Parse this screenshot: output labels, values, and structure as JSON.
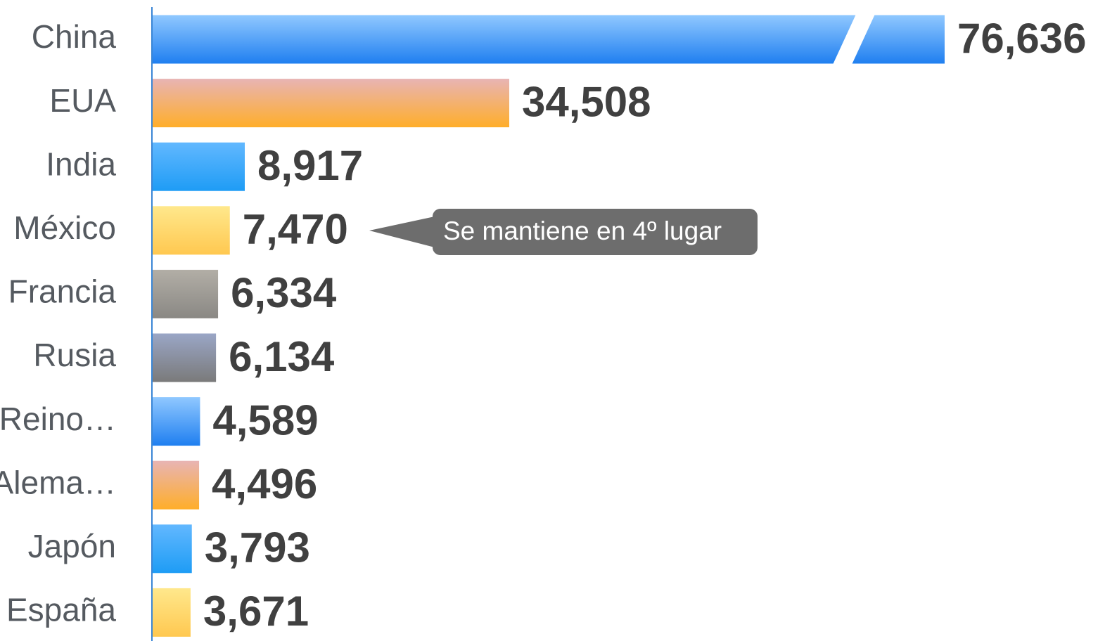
{
  "chart_data": {
    "type": "hbar",
    "categories": [
      "China",
      "EUA",
      "India",
      "México",
      "Francia",
      "Rusia",
      "Reino…",
      "Alema…",
      "Japón",
      "España"
    ],
    "values": [
      76636,
      34508,
      8917,
      7470,
      6334,
      6134,
      4589,
      4496,
      3793,
      3671
    ],
    "value_labels": [
      "76,636",
      "34,508",
      "8,917",
      "7,470",
      "6,334",
      "6,134",
      "4,589",
      "4,496",
      "3,793",
      "3,671"
    ],
    "colors": [
      [
        "#90c8ff",
        "#1f7ff0"
      ],
      [
        "#e8b4b4",
        "#ffae2a"
      ],
      [
        "#62b8ff",
        "#1e9cf5"
      ],
      [
        "#ffe88c",
        "#ffc850"
      ],
      [
        "#b2aea6",
        "#8a8884"
      ],
      [
        "#9aa6c6",
        "#7a7a7a"
      ],
      [
        "#90c8ff",
        "#1f7ff0"
      ],
      [
        "#e8b4b4",
        "#ffae2a"
      ],
      [
        "#62b8ff",
        "#1e9cf5"
      ],
      [
        "#ffe88c",
        "#ffc850"
      ]
    ],
    "annotation": "Se mantiene en 4º lugar"
  }
}
